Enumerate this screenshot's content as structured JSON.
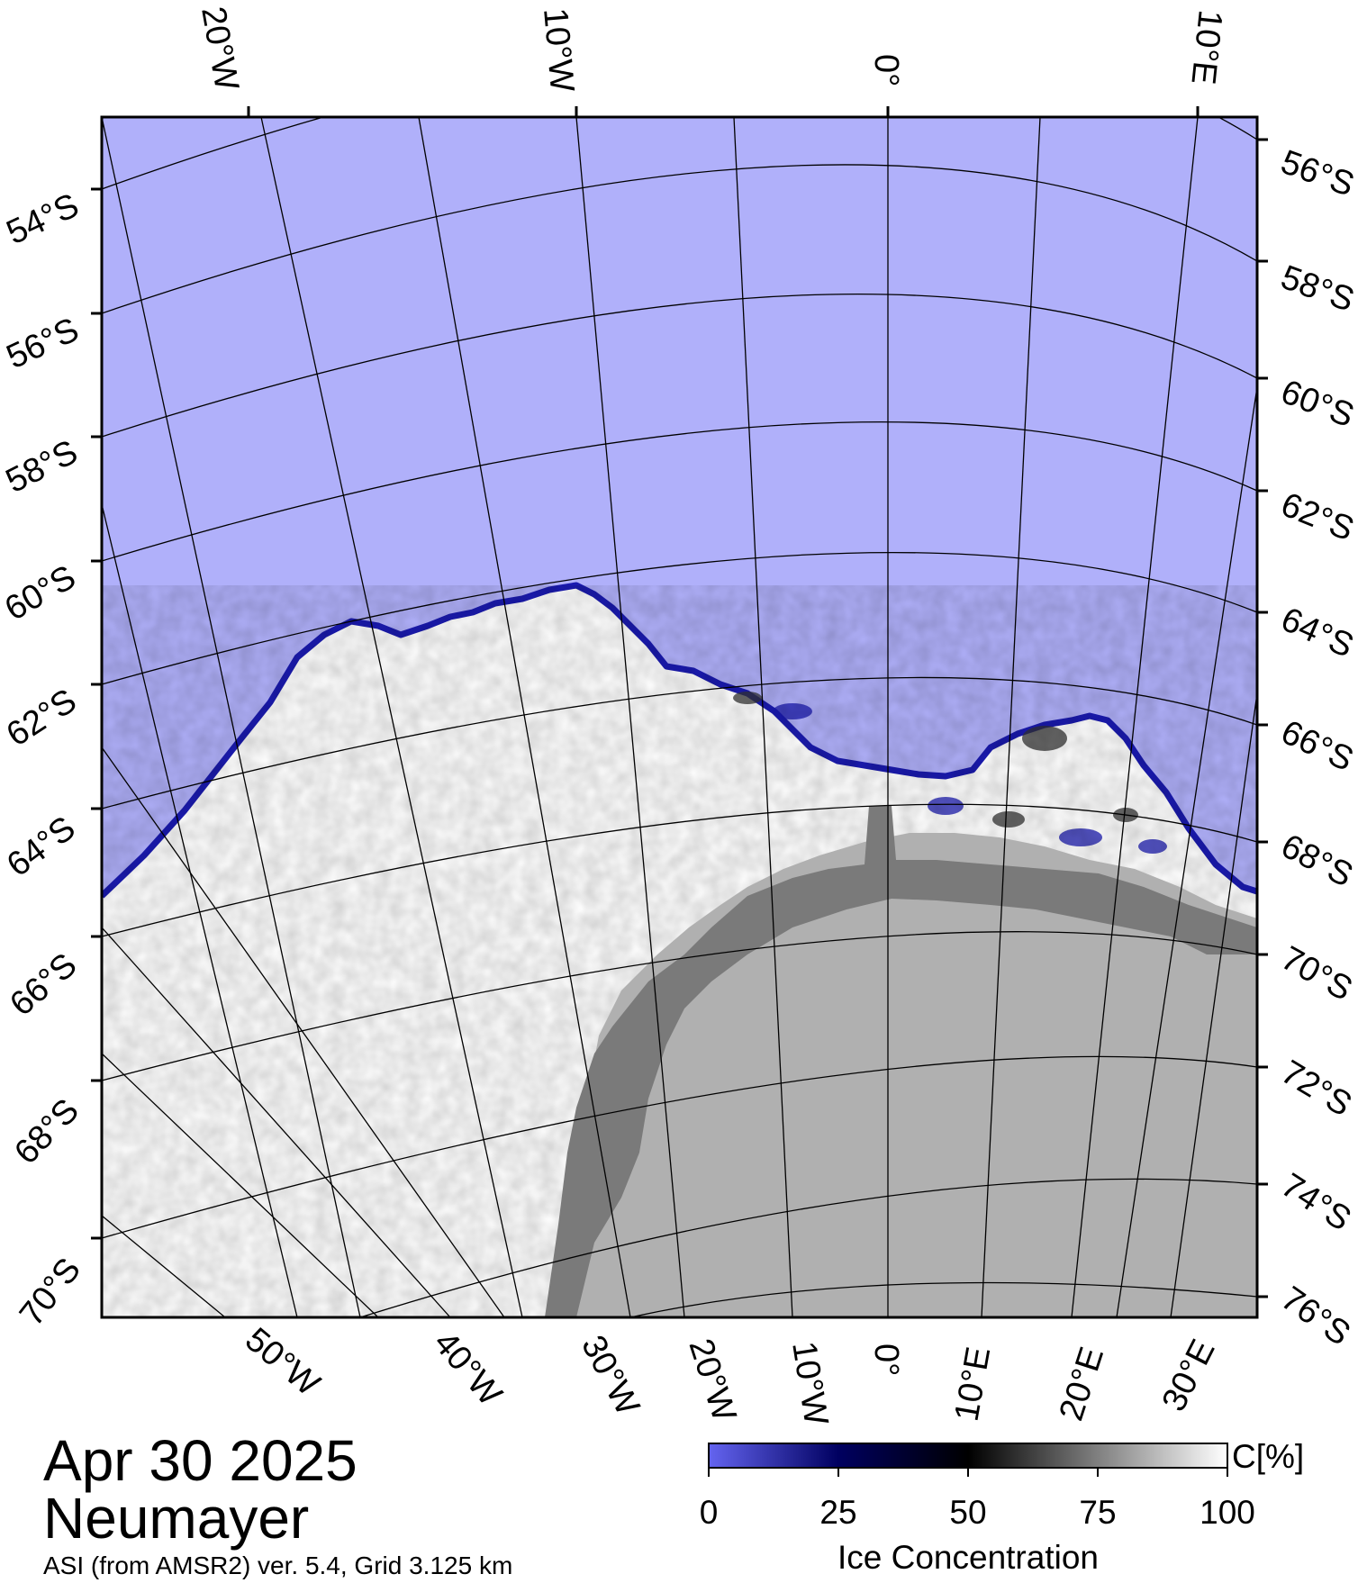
{
  "map": {
    "top_lon_labels": [
      "20°W",
      "10°W",
      "0°",
      "10°E"
    ],
    "bottom_lon_labels": [
      "50°W",
      "40°W",
      "30°W",
      "20°W",
      "10°W",
      "0°",
      "10°E",
      "20°E",
      "30°E"
    ],
    "left_lat_labels": [
      "54°S",
      "56°S",
      "58°S",
      "60°S",
      "62°S",
      "64°S",
      "66°S",
      "68°S",
      "70°S"
    ],
    "right_lat_labels": [
      "56°S",
      "58°S",
      "60°S",
      "62°S",
      "64°S",
      "66°S",
      "68°S",
      "70°S",
      "72°S",
      "74°S",
      "76°S"
    ],
    "colors": {
      "open_water": "#b0b0fa",
      "sea_ice": "#ffffff",
      "ice_shelf": "#7a7a7a",
      "land": "#b0b0b0",
      "ice_edge": "#1a1ab0"
    }
  },
  "colorbar": {
    "ticks": [
      "0",
      "25",
      "50",
      "75",
      "100"
    ],
    "unit": "C[%]",
    "title": "Ice Concentration",
    "colors": [
      "#6464f0",
      "#000060",
      "#000000",
      "#808080",
      "#ffffff"
    ]
  },
  "caption": {
    "date": "Apr 30 2025",
    "station": "Neumayer",
    "source": "ASI (from AMSR2) ver. 5.4,  Grid 3.125 km"
  }
}
